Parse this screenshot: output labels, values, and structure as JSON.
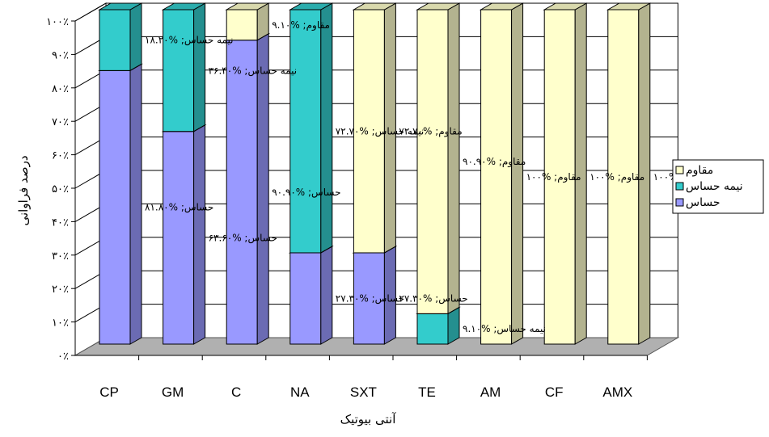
{
  "chart_data": {
    "type": "bar",
    "stacked": true,
    "three_d": true,
    "percent_axis": true,
    "categories": [
      "CP",
      "GM",
      "C",
      "NA",
      "SXT",
      "TE",
      "AM",
      "CF",
      "AMX"
    ],
    "series": [
      {
        "name": "حساس",
        "color": "#9999ff",
        "values": [
          81.8,
          63.6,
          90.9,
          27.3,
          27.3,
          0,
          0,
          0,
          0
        ],
        "labels": [
          "حساس; %۸۱.۸۰",
          "حساس; %۶۳.۶۰",
          "حساس; %۹۰.۹۰",
          "حساس; %۲۷.۳۰",
          "حساس; %۲۷.۳۰",
          "",
          "",
          "",
          ""
        ]
      },
      {
        "name": "نیمه حساس",
        "color": "#33cccc",
        "values": [
          18.2,
          36.4,
          0,
          72.7,
          0,
          9.1,
          0,
          0,
          0
        ],
        "labels": [
          "نیمه حساس; %۱۸.۲۰",
          "نیمه حساس; %۳۶.۴۰",
          "",
          "نیمه حساس; %۷۲.۷۰",
          "",
          "نیمه حساس; %۹.۱۰",
          "",
          "",
          ""
        ]
      },
      {
        "name": "مقاوم",
        "color": "#ffffcc",
        "values": [
          0,
          0,
          9.1,
          0,
          72.7,
          90.9,
          100,
          100,
          100
        ],
        "labels": [
          "",
          "",
          "مقاوم; %۹.۱۰",
          "",
          "مقاوم; %۷۲.۷۰",
          "مقاوم; %۹۰.۹۰",
          "مقاوم; %۱۰۰",
          "مقاوم; %۱۰۰",
          "مقاوم; %۱۰۰"
        ]
      }
    ],
    "yticks": [
      "۰٪",
      "۱۰٪",
      "۲۰٪",
      "۳۰٪",
      "۴۰٪",
      "۵۰٪",
      "۶۰٪",
      "۷۰٪",
      "۸۰٪",
      "۹۰٪",
      "۱۰۰٪"
    ],
    "ylim": [
      0,
      100
    ],
    "xlabel": "آنتی بیوتیک",
    "ylabel": "درصد فراوانی",
    "grid": true,
    "legend_position": "right"
  }
}
